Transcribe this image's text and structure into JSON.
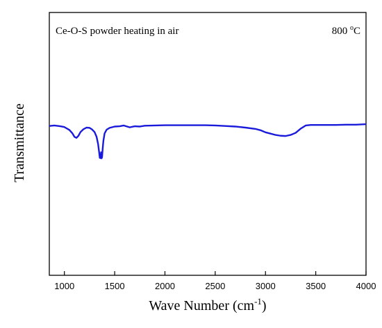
{
  "chart_data": {
    "type": "line",
    "annotation_left": "Ce-O-S powder heating in air",
    "annotation_right_value": "800",
    "annotation_right_sup": "o",
    "annotation_right_unit": "C",
    "xlabel_main": "Wave Number (cm",
    "xlabel_sup": "-1",
    "xlabel_close": ")",
    "ylabel": "Transmittance",
    "xlim": [
      850,
      4000
    ],
    "ylim": [
      0,
      1
    ],
    "xticks": [
      1000,
      1500,
      2000,
      2500,
      3000,
      3500,
      4000
    ],
    "line_color": "#1a1adb",
    "series": [
      {
        "x": [
          850,
          900,
          960,
          1000,
          1050,
          1080,
          1100,
          1120,
          1140,
          1160,
          1190,
          1220,
          1250,
          1275,
          1300,
          1320,
          1335,
          1345,
          1352,
          1360,
          1365,
          1370,
          1375,
          1380,
          1388,
          1400,
          1420,
          1450,
          1500,
          1550,
          1590,
          1650,
          1700,
          1750,
          1800,
          1900,
          2000,
          2200,
          2400,
          2500,
          2600,
          2700,
          2800,
          2900,
          2950,
          3000,
          3050,
          3100,
          3150,
          3200,
          3250,
          3300,
          3350,
          3400,
          3450,
          3500,
          3600,
          3700,
          3800,
          3900,
          4000
        ],
        "y": [
          0.568,
          0.57,
          0.567,
          0.564,
          0.553,
          0.54,
          0.527,
          0.523,
          0.531,
          0.545,
          0.556,
          0.562,
          0.561,
          0.555,
          0.545,
          0.527,
          0.5,
          0.47,
          0.447,
          0.446,
          0.468,
          0.445,
          0.45,
          0.478,
          0.512,
          0.54,
          0.554,
          0.561,
          0.566,
          0.567,
          0.57,
          0.563,
          0.567,
          0.566,
          0.569,
          0.57,
          0.571,
          0.571,
          0.571,
          0.57,
          0.568,
          0.566,
          0.562,
          0.557,
          0.552,
          0.544,
          0.539,
          0.534,
          0.531,
          0.53,
          0.534,
          0.542,
          0.558,
          0.57,
          0.572,
          0.572,
          0.572,
          0.572,
          0.573,
          0.573,
          0.575
        ]
      }
    ]
  }
}
